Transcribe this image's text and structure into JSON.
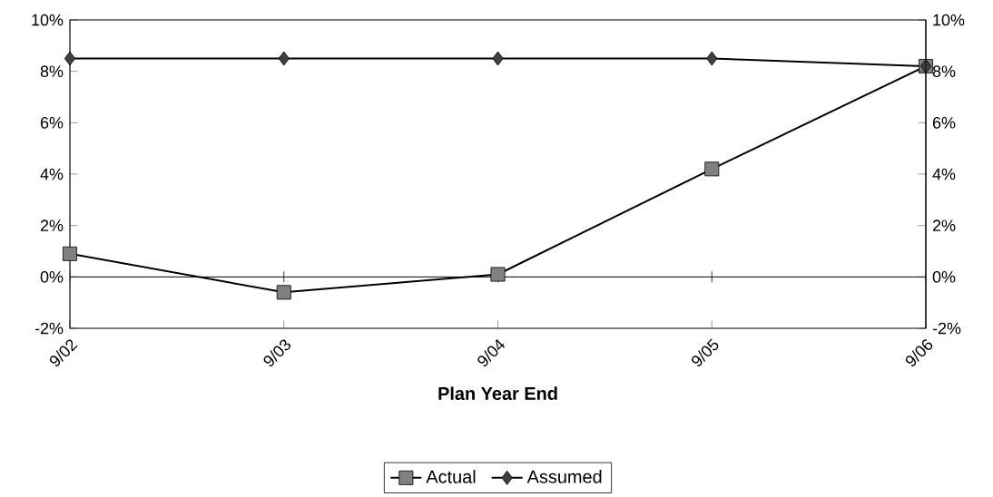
{
  "chart_data": {
    "type": "line",
    "xlabel": "Plan Year End",
    "categories": [
      "9/02",
      "9/03",
      "9/04",
      "9/05",
      "9/06"
    ],
    "series": [
      {
        "name": "Actual",
        "color": "#808080",
        "marker": "square",
        "values": [
          0.9,
          -0.6,
          0.1,
          4.2,
          8.2
        ]
      },
      {
        "name": "Assumed",
        "color": "#404040",
        "marker": "diamond",
        "values": [
          8.5,
          8.5,
          8.5,
          8.5,
          8.2
        ]
      }
    ],
    "ylim": [
      -2,
      10
    ],
    "yticks": [
      {
        "value": -2,
        "label": "-2%"
      },
      {
        "value": 0,
        "label": "0%"
      },
      {
        "value": 2,
        "label": "2%"
      },
      {
        "value": 4,
        "label": "4%"
      },
      {
        "value": 6,
        "label": "6%"
      },
      {
        "value": 8,
        "label": "8%"
      },
      {
        "value": 10,
        "label": "10%"
      }
    ],
    "y2lim": [
      -2,
      10
    ],
    "y2ticks": [
      {
        "value": -2,
        "label": "-2%"
      },
      {
        "value": 0,
        "label": "0%"
      },
      {
        "value": 2,
        "label": "2%"
      },
      {
        "value": 4,
        "label": "4%"
      },
      {
        "value": 6,
        "label": "6%"
      },
      {
        "value": 8,
        "label": "8%"
      },
      {
        "value": 10,
        "label": "10%"
      }
    ],
    "ref_lines": [
      {
        "axis": "y",
        "value": 0
      }
    ],
    "legend": "bottom",
    "grid": false,
    "line_style": "solid"
  }
}
